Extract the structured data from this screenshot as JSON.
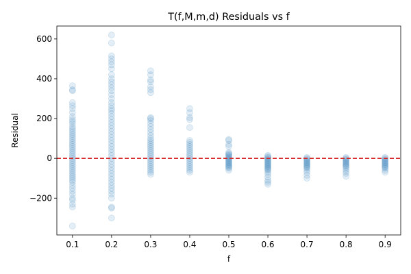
{
  "chart_data": {
    "type": "scatter",
    "title": "T(f,M,m,d) Residuals vs f",
    "xlabel": "f",
    "ylabel": "Residual",
    "xlim": [
      0.06,
      0.94
    ],
    "ylim": [
      -385,
      665
    ],
    "x_ticks": [
      0.1,
      0.2,
      0.3,
      0.4,
      0.5,
      0.6,
      0.7,
      0.8,
      0.9
    ],
    "x_tick_labels": [
      "0.1",
      "0.2",
      "0.3",
      "0.4",
      "0.5",
      "0.6",
      "0.7",
      "0.8",
      "0.9"
    ],
    "y_ticks": [
      -200,
      0,
      200,
      400,
      600
    ],
    "y_tick_labels": [
      "−200",
      "0",
      "200",
      "400",
      "600"
    ],
    "reference_line": {
      "y": 0,
      "style": "dashed",
      "color": "#d62728"
    },
    "point_color": "#1f77b4",
    "point_alpha": 0.12,
    "grid": false,
    "legend": "none",
    "series": [
      {
        "x": 0.1,
        "y": [
          365,
          345,
          340,
          280,
          265,
          250,
          230,
          210,
          195,
          185,
          175,
          160,
          150,
          140,
          130,
          120,
          110,
          100,
          90,
          80,
          70,
          60,
          50,
          40,
          30,
          20,
          10,
          0,
          -10,
          -20,
          -30,
          -40,
          -50,
          -60,
          -70,
          -80,
          -90,
          -100,
          -110,
          -120,
          -135,
          -150,
          -165,
          -180,
          -200,
          -210,
          -230,
          -245,
          -340
        ]
      },
      {
        "x": 0.2,
        "y": [
          620,
          580,
          515,
          500,
          485,
          470,
          450,
          420,
          400,
          385,
          370,
          355,
          340,
          320,
          300,
          280,
          265,
          250,
          240,
          225,
          210,
          195,
          180,
          165,
          150,
          135,
          120,
          105,
          90,
          75,
          60,
          45,
          30,
          15,
          0,
          -15,
          -30,
          -45,
          -60,
          -75,
          -90,
          -105,
          -120,
          -135,
          -150,
          -165,
          -180,
          -200,
          -245,
          -250,
          -300
        ]
      },
      {
        "x": 0.3,
        "y": [
          440,
          420,
          395,
          385,
          360,
          345,
          330,
          205,
          200,
          190,
          175,
          160,
          145,
          130,
          115,
          100,
          90,
          80,
          70,
          60,
          50,
          40,
          30,
          20,
          10,
          0,
          -10,
          -20,
          -30,
          -40,
          -50,
          -60,
          -70,
          -80
        ]
      },
      {
        "x": 0.4,
        "y": [
          250,
          230,
          205,
          195,
          155,
          90,
          80,
          70,
          60,
          50,
          40,
          30,
          20,
          10,
          0,
          -10,
          -20,
          -30,
          -40,
          -50,
          -60,
          -70
        ]
      },
      {
        "x": 0.5,
        "y": [
          95,
          90,
          70,
          60,
          30,
          25,
          20,
          15,
          10,
          5,
          0,
          -5,
          -10,
          -15,
          -20,
          -25,
          -30,
          -35,
          -40,
          -45,
          -50,
          -60
        ]
      },
      {
        "x": 0.6,
        "y": [
          15,
          10,
          5,
          0,
          -5,
          -10,
          -15,
          -20,
          -25,
          -30,
          -35,
          -40,
          -45,
          -50,
          -55,
          -60,
          -70,
          -80,
          -95,
          -110,
          -120,
          -130
        ]
      },
      {
        "x": 0.7,
        "y": [
          5,
          0,
          -5,
          -10,
          -15,
          -20,
          -25,
          -30,
          -35,
          -40,
          -45,
          -50,
          -60,
          -70,
          -85,
          -100
        ]
      },
      {
        "x": 0.8,
        "y": [
          5,
          0,
          -5,
          -10,
          -15,
          -20,
          -25,
          -30,
          -35,
          -40,
          -45,
          -55,
          -65,
          -75,
          -90
        ]
      },
      {
        "x": 0.9,
        "y": [
          5,
          0,
          -5,
          -10,
          -15,
          -20,
          -25,
          -30,
          -35,
          -40,
          -45,
          -50,
          -60,
          -70
        ]
      }
    ]
  }
}
